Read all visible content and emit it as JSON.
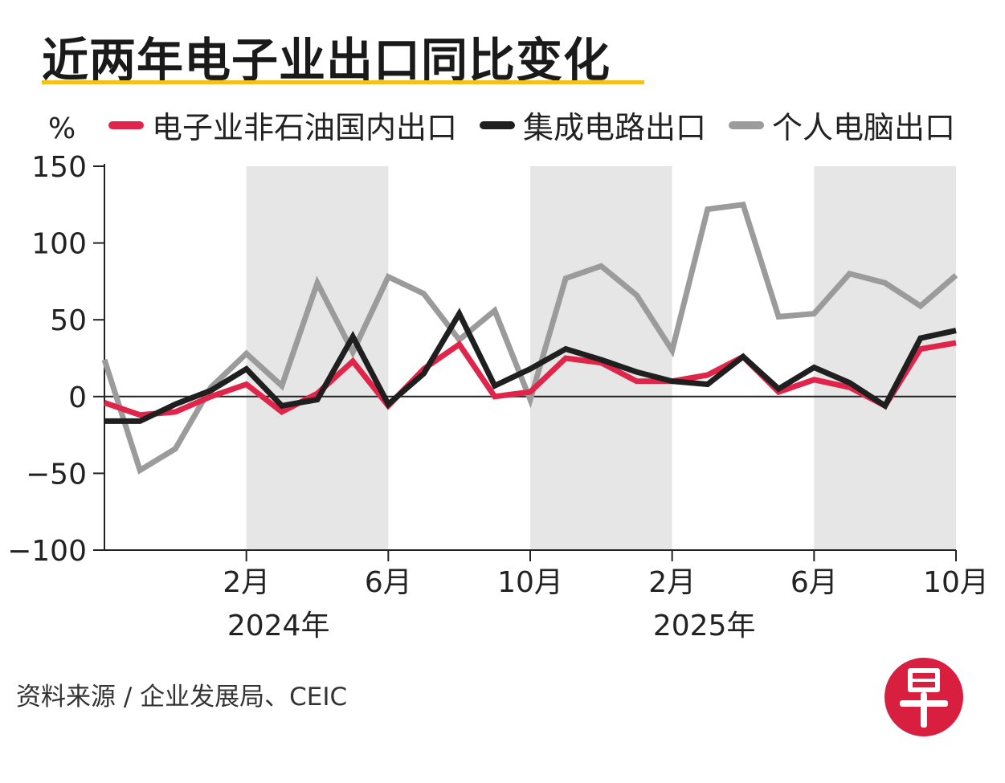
{
  "title": "近两年电子业出口同比变化",
  "source": "资料来源 / 企业发展局、CEIC",
  "logo": {
    "text": "早",
    "color": "#d81f3f"
  },
  "colors": {
    "highlight": "#f2c21b",
    "shade": "#e6e6e6"
  },
  "chart_data": {
    "type": "line",
    "ylabel": "%",
    "ylim": [
      -100,
      150
    ],
    "yticks": [
      150,
      100,
      50,
      0,
      -50,
      -100
    ],
    "ytick_labels": [
      "150",
      "100",
      "50",
      "0",
      "−50",
      "−100"
    ],
    "x": [
      "2023-10",
      "2023-11",
      "2023-12",
      "2024-01",
      "2024-02",
      "2024-03",
      "2024-04",
      "2024-05",
      "2024-06",
      "2024-07",
      "2024-08",
      "2024-09",
      "2024-10",
      "2024-11",
      "2024-12",
      "2025-01",
      "2025-02",
      "2025-03",
      "2025-04",
      "2025-05",
      "2025-06",
      "2025-07",
      "2025-08",
      "2025-09",
      "2025-10"
    ],
    "xticks": [
      {
        "x": "2024-02",
        "label": "2月"
      },
      {
        "x": "2024-06",
        "label": "6月"
      },
      {
        "x": "2024-10",
        "label": "10月"
      },
      {
        "x": "2025-02",
        "label": "2月"
      },
      {
        "x": "2025-06",
        "label": "6月"
      },
      {
        "x": "2025-10",
        "label": "10月"
      }
    ],
    "year_labels": [
      {
        "x": "2024-02",
        "label": "2024年"
      },
      {
        "x": "2025-02",
        "label": "2025年"
      }
    ],
    "shaded_ranges": [
      [
        "2024-02",
        "2024-06"
      ],
      [
        "2024-10",
        "2025-02"
      ],
      [
        "2025-06",
        "2025-10"
      ]
    ],
    "series": [
      {
        "name": "个人电脑出口",
        "color": "#9b9b9b",
        "values": [
          24,
          -48,
          -34,
          6,
          28,
          7,
          74,
          29,
          78,
          67,
          37,
          56,
          -2,
          77,
          85,
          66,
          30,
          122,
          125,
          52,
          54,
          80,
          74,
          59,
          79
        ]
      },
      {
        "name": "电子业非石油国内出口",
        "color": "#e0244a",
        "values": [
          -4,
          -12,
          -10,
          0,
          8,
          -10,
          2,
          23,
          -6,
          18,
          34,
          0,
          3,
          25,
          22,
          10,
          10,
          14,
          26,
          3,
          11,
          6,
          -6,
          31,
          35
        ]
      },
      {
        "name": "集成电路出口",
        "color": "#1f1f1f",
        "values": [
          -16,
          -16,
          -5,
          4,
          18,
          -6,
          -2,
          39,
          -5,
          15,
          54,
          7,
          18,
          31,
          24,
          16,
          10,
          8,
          26,
          5,
          19,
          9,
          -6,
          38,
          43
        ]
      }
    ],
    "legend": {
      "position": "top",
      "order": [
        "电子业非石油国内出口",
        "集成电路出口",
        "个人电脑出口"
      ]
    }
  }
}
